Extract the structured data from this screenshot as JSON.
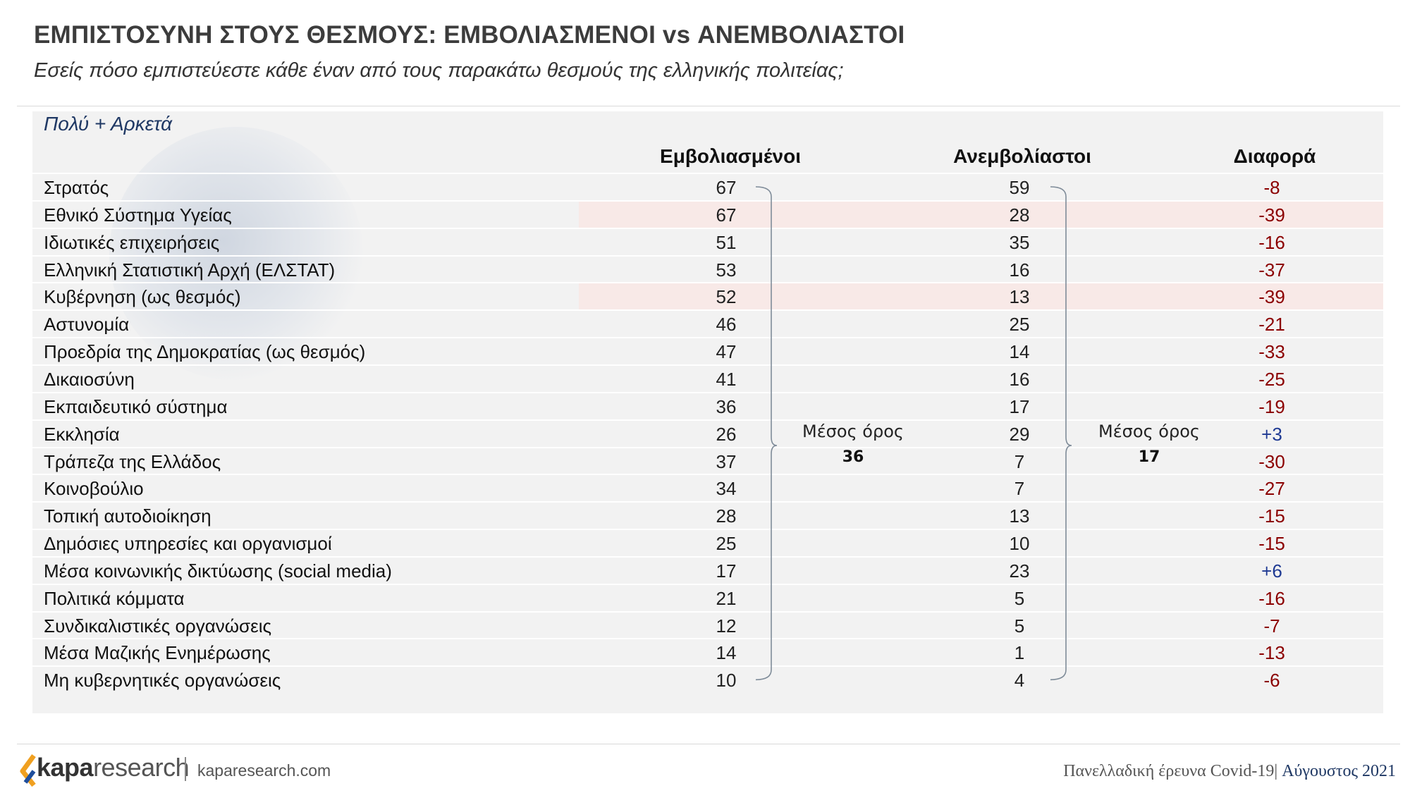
{
  "header": {
    "title": "ΕΜΠΙΣΤΟΣΥΝΗ ΣΤΟΥΣ ΘΕΣΜΟΥΣ: ΕΜΒΟΛΙΑΣΜΕΝΟΙ vs ΑΝΕΜΒΟΛΙΑΣΤΟΙ",
    "subtitle": "Εσείς πόσο εμπιστεύεστε κάθε έναν από τους παρακάτω θεσμούς της ελληνικής πολιτείας;"
  },
  "chart_data": {
    "type": "table",
    "section_label": "Πολύ + Αρκετά",
    "columns": [
      "Εμβολιασμένοι",
      "Ανεμβολίαστοι",
      "Διαφορά"
    ],
    "rows": [
      {
        "label": "Στρατός",
        "vaccinated": "67",
        "unvaccinated": "59",
        "diff": "-8"
      },
      {
        "label": "Εθνικό Σύστημα Υγείας",
        "vaccinated": "67",
        "unvaccinated": "28",
        "diff": "-39",
        "highlight": true
      },
      {
        "label": "Ιδιωτικές επιχειρήσεις",
        "vaccinated": "51",
        "unvaccinated": "35",
        "diff": "-16"
      },
      {
        "label": "Ελληνική Στατιστική Αρχή (ΕΛΣΤΑΤ)",
        "vaccinated": "53",
        "unvaccinated": "16",
        "diff": "-37"
      },
      {
        "label": "Κυβέρνηση (ως θεσμός)",
        "vaccinated": "52",
        "unvaccinated": "13",
        "diff": "-39",
        "highlight": true
      },
      {
        "label": "Αστυνομία",
        "vaccinated": "46",
        "unvaccinated": "25",
        "diff": "-21"
      },
      {
        "label": "Προεδρία της Δημοκρατίας (ως θεσμός)",
        "vaccinated": "47",
        "unvaccinated": "14",
        "diff": "-33"
      },
      {
        "label": "Δικαιοσύνη",
        "vaccinated": "41",
        "unvaccinated": "16",
        "diff": "-25"
      },
      {
        "label": "Εκπαιδευτικό σύστημα",
        "vaccinated": "36",
        "unvaccinated": "17",
        "diff": "-19"
      },
      {
        "label": "Εκκλησία",
        "vaccinated": "26",
        "unvaccinated": "29",
        "diff": "+3"
      },
      {
        "label": "Τράπεζα της Ελλάδος",
        "vaccinated": "37",
        "unvaccinated": "7",
        "diff": "-30"
      },
      {
        "label": "Κοινοβούλιο",
        "vaccinated": "34",
        "unvaccinated": "7",
        "diff": "-27"
      },
      {
        "label": "Τοπική αυτοδιοίκηση",
        "vaccinated": "28",
        "unvaccinated": "13",
        "diff": "-15"
      },
      {
        "label": "Δημόσιες υπηρεσίες και οργανισμοί",
        "vaccinated": "25",
        "unvaccinated": "10",
        "diff": "-15"
      },
      {
        "label": "Μέσα κοινωνικής δικτύωσης (social media)",
        "vaccinated": "17",
        "unvaccinated": "23",
        "diff": "+6"
      },
      {
        "label": "Πολιτικά κόμματα",
        "vaccinated": "21",
        "unvaccinated": "5",
        "diff": "-16"
      },
      {
        "label": "Συνδικαλιστικές οργανώσεις",
        "vaccinated": "12",
        "unvaccinated": "5",
        "diff": "-7"
      },
      {
        "label": "Μέσα Μαζικής Ενημέρωσης",
        "vaccinated": "14",
        "unvaccinated": "1",
        "diff": "-13"
      },
      {
        "label": "Μη κυβερνητικές οργανώσεις",
        "vaccinated": "10",
        "unvaccinated": "4",
        "diff": "-6"
      }
    ],
    "averages": {
      "label": "Μέσος όρος",
      "vaccinated": "36",
      "unvaccinated": "17"
    },
    "colors": {
      "negative": "#8b0000",
      "positive": "#1f3a93",
      "highlight": "#f8e9e7"
    }
  },
  "footer": {
    "logo_bold": "kapa",
    "logo_rest": "research",
    "site": "kaparesearch.com",
    "survey": "Πανελλαδική έρευνα Covid-19",
    "separator": "|",
    "month": "Αύγουστος 2021"
  }
}
